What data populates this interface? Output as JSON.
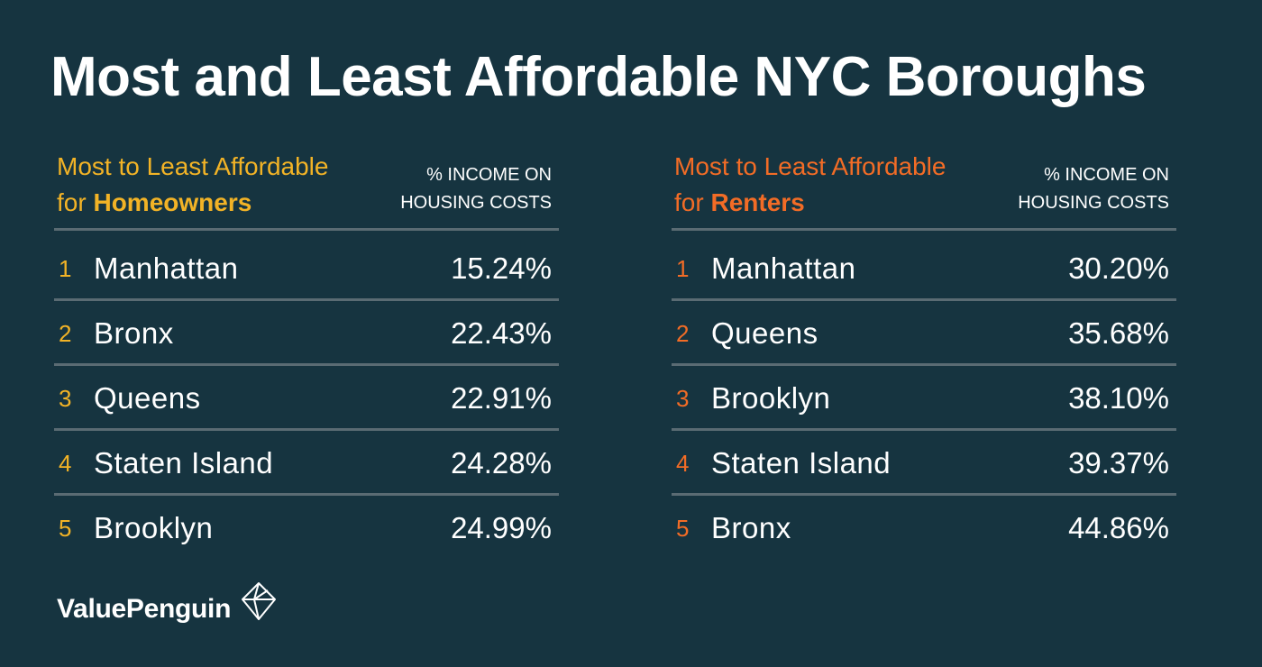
{
  "title": "Most and Least Affordable NYC Boroughs",
  "homeowners": {
    "heading_line1": "Most to Least Affordable",
    "heading_for": "for",
    "heading_emphasis": "Homeowners",
    "column_line1": "% INCOME ON",
    "column_line2": "HOUSING COSTS",
    "accent_color": "#f2b326",
    "rows": [
      {
        "rank": "1",
        "name": "Manhattan",
        "value": "15.24%"
      },
      {
        "rank": "2",
        "name": "Bronx",
        "value": "22.43%"
      },
      {
        "rank": "3",
        "name": "Queens",
        "value": "22.91%"
      },
      {
        "rank": "4",
        "name": "Staten Island",
        "value": "24.28%"
      },
      {
        "rank": "5",
        "name": "Brooklyn",
        "value": "24.99%"
      }
    ]
  },
  "renters": {
    "heading_line1": "Most to Least Affordable",
    "heading_for": "for",
    "heading_emphasis": "Renters",
    "column_line1": "% INCOME ON",
    "column_line2": "HOUSING COSTS",
    "accent_color": "#f26c26",
    "rows": [
      {
        "rank": "1",
        "name": "Manhattan",
        "value": "30.20%"
      },
      {
        "rank": "2",
        "name": "Queens",
        "value": "35.68%"
      },
      {
        "rank": "3",
        "name": "Brooklyn",
        "value": "38.10%"
      },
      {
        "rank": "4",
        "name": "Staten Island",
        "value": "39.37%"
      },
      {
        "rank": "5",
        "name": "Bronx",
        "value": "44.86%"
      }
    ]
  },
  "brand": {
    "name": "ValuePenguin",
    "icon": "valuepenguin-logo-icon"
  }
}
